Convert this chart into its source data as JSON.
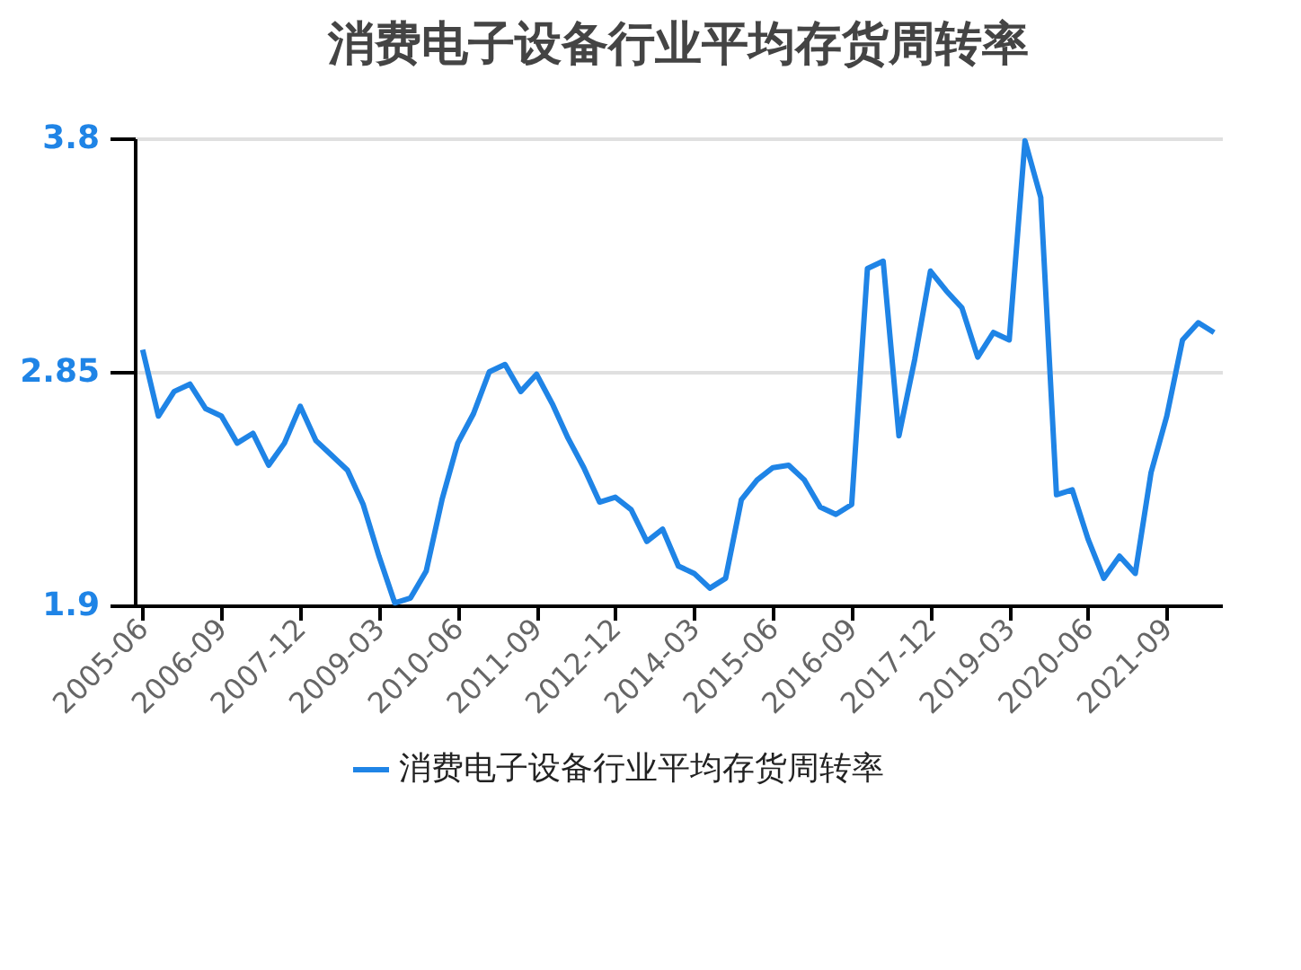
{
  "chart_data": {
    "type": "line",
    "title": "消费电子设备行业平均存货周转率",
    "categories": [
      "2005-06",
      null,
      null,
      null,
      null,
      "2006-09",
      null,
      null,
      null,
      null,
      "2007-12",
      null,
      null,
      null,
      null,
      "2009-03",
      null,
      null,
      null,
      null,
      "2010-06",
      null,
      null,
      null,
      null,
      "2011-09",
      null,
      null,
      null,
      null,
      "2012-12",
      null,
      null,
      null,
      null,
      "2014-03",
      null,
      null,
      null,
      null,
      "2015-06",
      null,
      null,
      null,
      null,
      "2016-09",
      null,
      null,
      null,
      null,
      "2017-12",
      null,
      null,
      null,
      null,
      "2019-03",
      null,
      null,
      null,
      null,
      "2020-06",
      null,
      null,
      null,
      null,
      "2021-09",
      null,
      null,
      null
    ],
    "series": [
      {
        "name": "消费电子设备行业平均存货周转率",
        "color": "#1f84e6",
        "values": [
          2.94,
          2.67,
          2.77,
          2.8,
          2.7,
          2.67,
          2.56,
          2.6,
          2.47,
          2.56,
          2.71,
          2.57,
          2.51,
          2.45,
          2.31,
          2.1,
          1.91,
          1.93,
          2.04,
          2.33,
          2.56,
          2.68,
          2.85,
          2.88,
          2.77,
          2.84,
          2.72,
          2.58,
          2.46,
          2.32,
          2.34,
          2.29,
          2.16,
          2.21,
          2.06,
          2.03,
          1.97,
          2.01,
          2.33,
          2.41,
          2.46,
          2.47,
          2.41,
          2.3,
          2.27,
          2.31,
          3.27,
          3.3,
          2.59,
          2.9,
          3.26,
          3.18,
          3.11,
          2.91,
          3.01,
          2.98,
          3.79,
          3.56,
          2.35,
          2.37,
          2.17,
          2.01,
          2.1,
          2.03,
          2.44,
          2.67,
          2.98,
          3.05,
          3.01
        ]
      }
    ],
    "ylim": [
      1.9,
      3.8
    ],
    "yticks": [
      1.9,
      2.85,
      3.8
    ],
    "grid": "y",
    "legend": "bottom",
    "line_style": "solid"
  }
}
